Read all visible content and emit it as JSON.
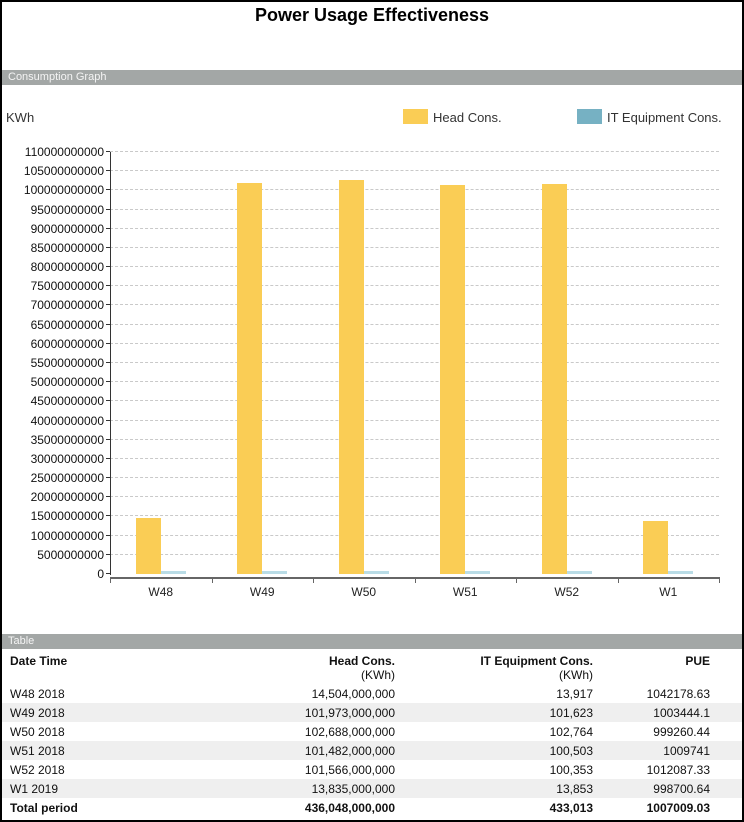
{
  "page": {
    "title": "Power Usage Effectiveness"
  },
  "sections": {
    "graph_label": "Consumption Graph",
    "table_label": "Table"
  },
  "chart_data": {
    "type": "bar",
    "title": "Consumption Graph",
    "ylabel": "KWh",
    "categories": [
      "W48",
      "W49",
      "W50",
      "W51",
      "W52",
      "W1"
    ],
    "series": [
      {
        "name": "Head Cons.",
        "color": "#FACD55",
        "values": [
          14504000000,
          101973000000,
          102688000000,
          101482000000,
          101566000000,
          13835000000
        ]
      },
      {
        "name": "IT Equipment Cons.",
        "color": "#76B1C3",
        "bar_color": "#B9DCE6",
        "values": [
          13917,
          101623,
          102764,
          100503,
          100353,
          13853
        ]
      }
    ],
    "ylim": [
      0,
      110000000000
    ],
    "ytick_step": 5000000000,
    "grid": "dashed-horizontal",
    "legend_position": "top"
  },
  "table": {
    "headers": [
      {
        "line1": "Date Time",
        "line2": ""
      },
      {
        "line1": "Head Cons.",
        "line2": "(KWh)"
      },
      {
        "line1": "IT Equipment Cons.",
        "line2": "(KWh)"
      },
      {
        "line1": "PUE",
        "line2": ""
      }
    ],
    "rows": [
      [
        "W48 2018",
        "14,504,000,000",
        "13,917",
        "1042178.63"
      ],
      [
        "W49 2018",
        "101,973,000,000",
        "101,623",
        "1003444.1"
      ],
      [
        "W50 2018",
        "102,688,000,000",
        "102,764",
        "999260.44"
      ],
      [
        "W51 2018",
        "101,482,000,000",
        "100,503",
        "1009741"
      ],
      [
        "W52 2018",
        "101,566,000,000",
        "100,353",
        "1012087.33"
      ],
      [
        "W1 2019",
        "13,835,000,000",
        "13,853",
        "998700.64"
      ]
    ],
    "total_row": [
      "Total period",
      "436,048,000,000",
      "433,013",
      "1007009.03"
    ]
  },
  "colors": {
    "section_bar": "#A3A7A6",
    "grid_line": "#C9C9C9",
    "axis_line": "#666666",
    "zebra_row": "#EFEFEF"
  }
}
